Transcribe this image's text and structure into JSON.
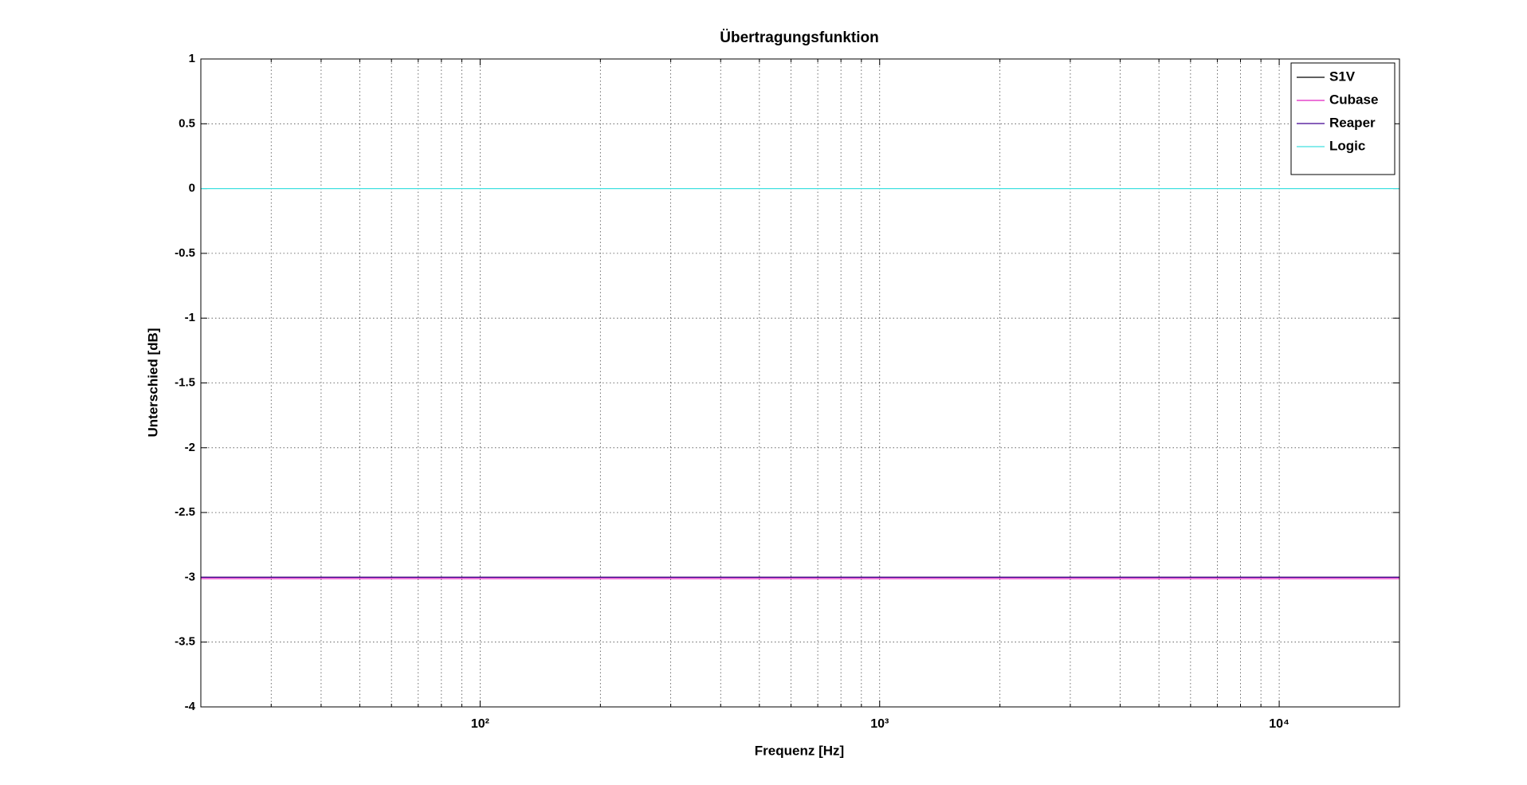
{
  "chart_data": {
    "type": "line",
    "title": "Übertragungsfunktion",
    "x_label": "Frequenz [Hz]",
    "y_label": "Unterschied [dB]",
    "x_scale": "log",
    "xlim": [
      20,
      20000
    ],
    "ylim": [
      -4,
      1
    ],
    "xticks": [
      {
        "value": 100,
        "label": "10²"
      },
      {
        "value": 1000,
        "label": "10³"
      },
      {
        "value": 10000,
        "label": "10⁴"
      }
    ],
    "xminorticks": [
      20,
      30,
      40,
      50,
      60,
      70,
      80,
      90,
      200,
      300,
      400,
      500,
      600,
      700,
      800,
      900,
      2000,
      3000,
      4000,
      5000,
      6000,
      7000,
      8000,
      9000
    ],
    "yticks": [
      -4,
      -3.5,
      -3,
      -2.5,
      -2,
      -1.5,
      -1,
      -0.5,
      0,
      0.5,
      1
    ],
    "grid": true,
    "legend": "upper right",
    "x": [
      20,
      20000
    ],
    "series": [
      {
        "name": "S1V",
        "color": "#000000",
        "values": [
          -3,
          -3
        ]
      },
      {
        "name": "Cubase",
        "color": "#e020c0",
        "values": [
          -3.01,
          -3.01
        ]
      },
      {
        "name": "Reaper",
        "color": "#400090",
        "values": [
          -3,
          -3
        ]
      },
      {
        "name": "Logic",
        "color": "#40e0e0",
        "values": [
          0,
          0
        ]
      }
    ]
  }
}
